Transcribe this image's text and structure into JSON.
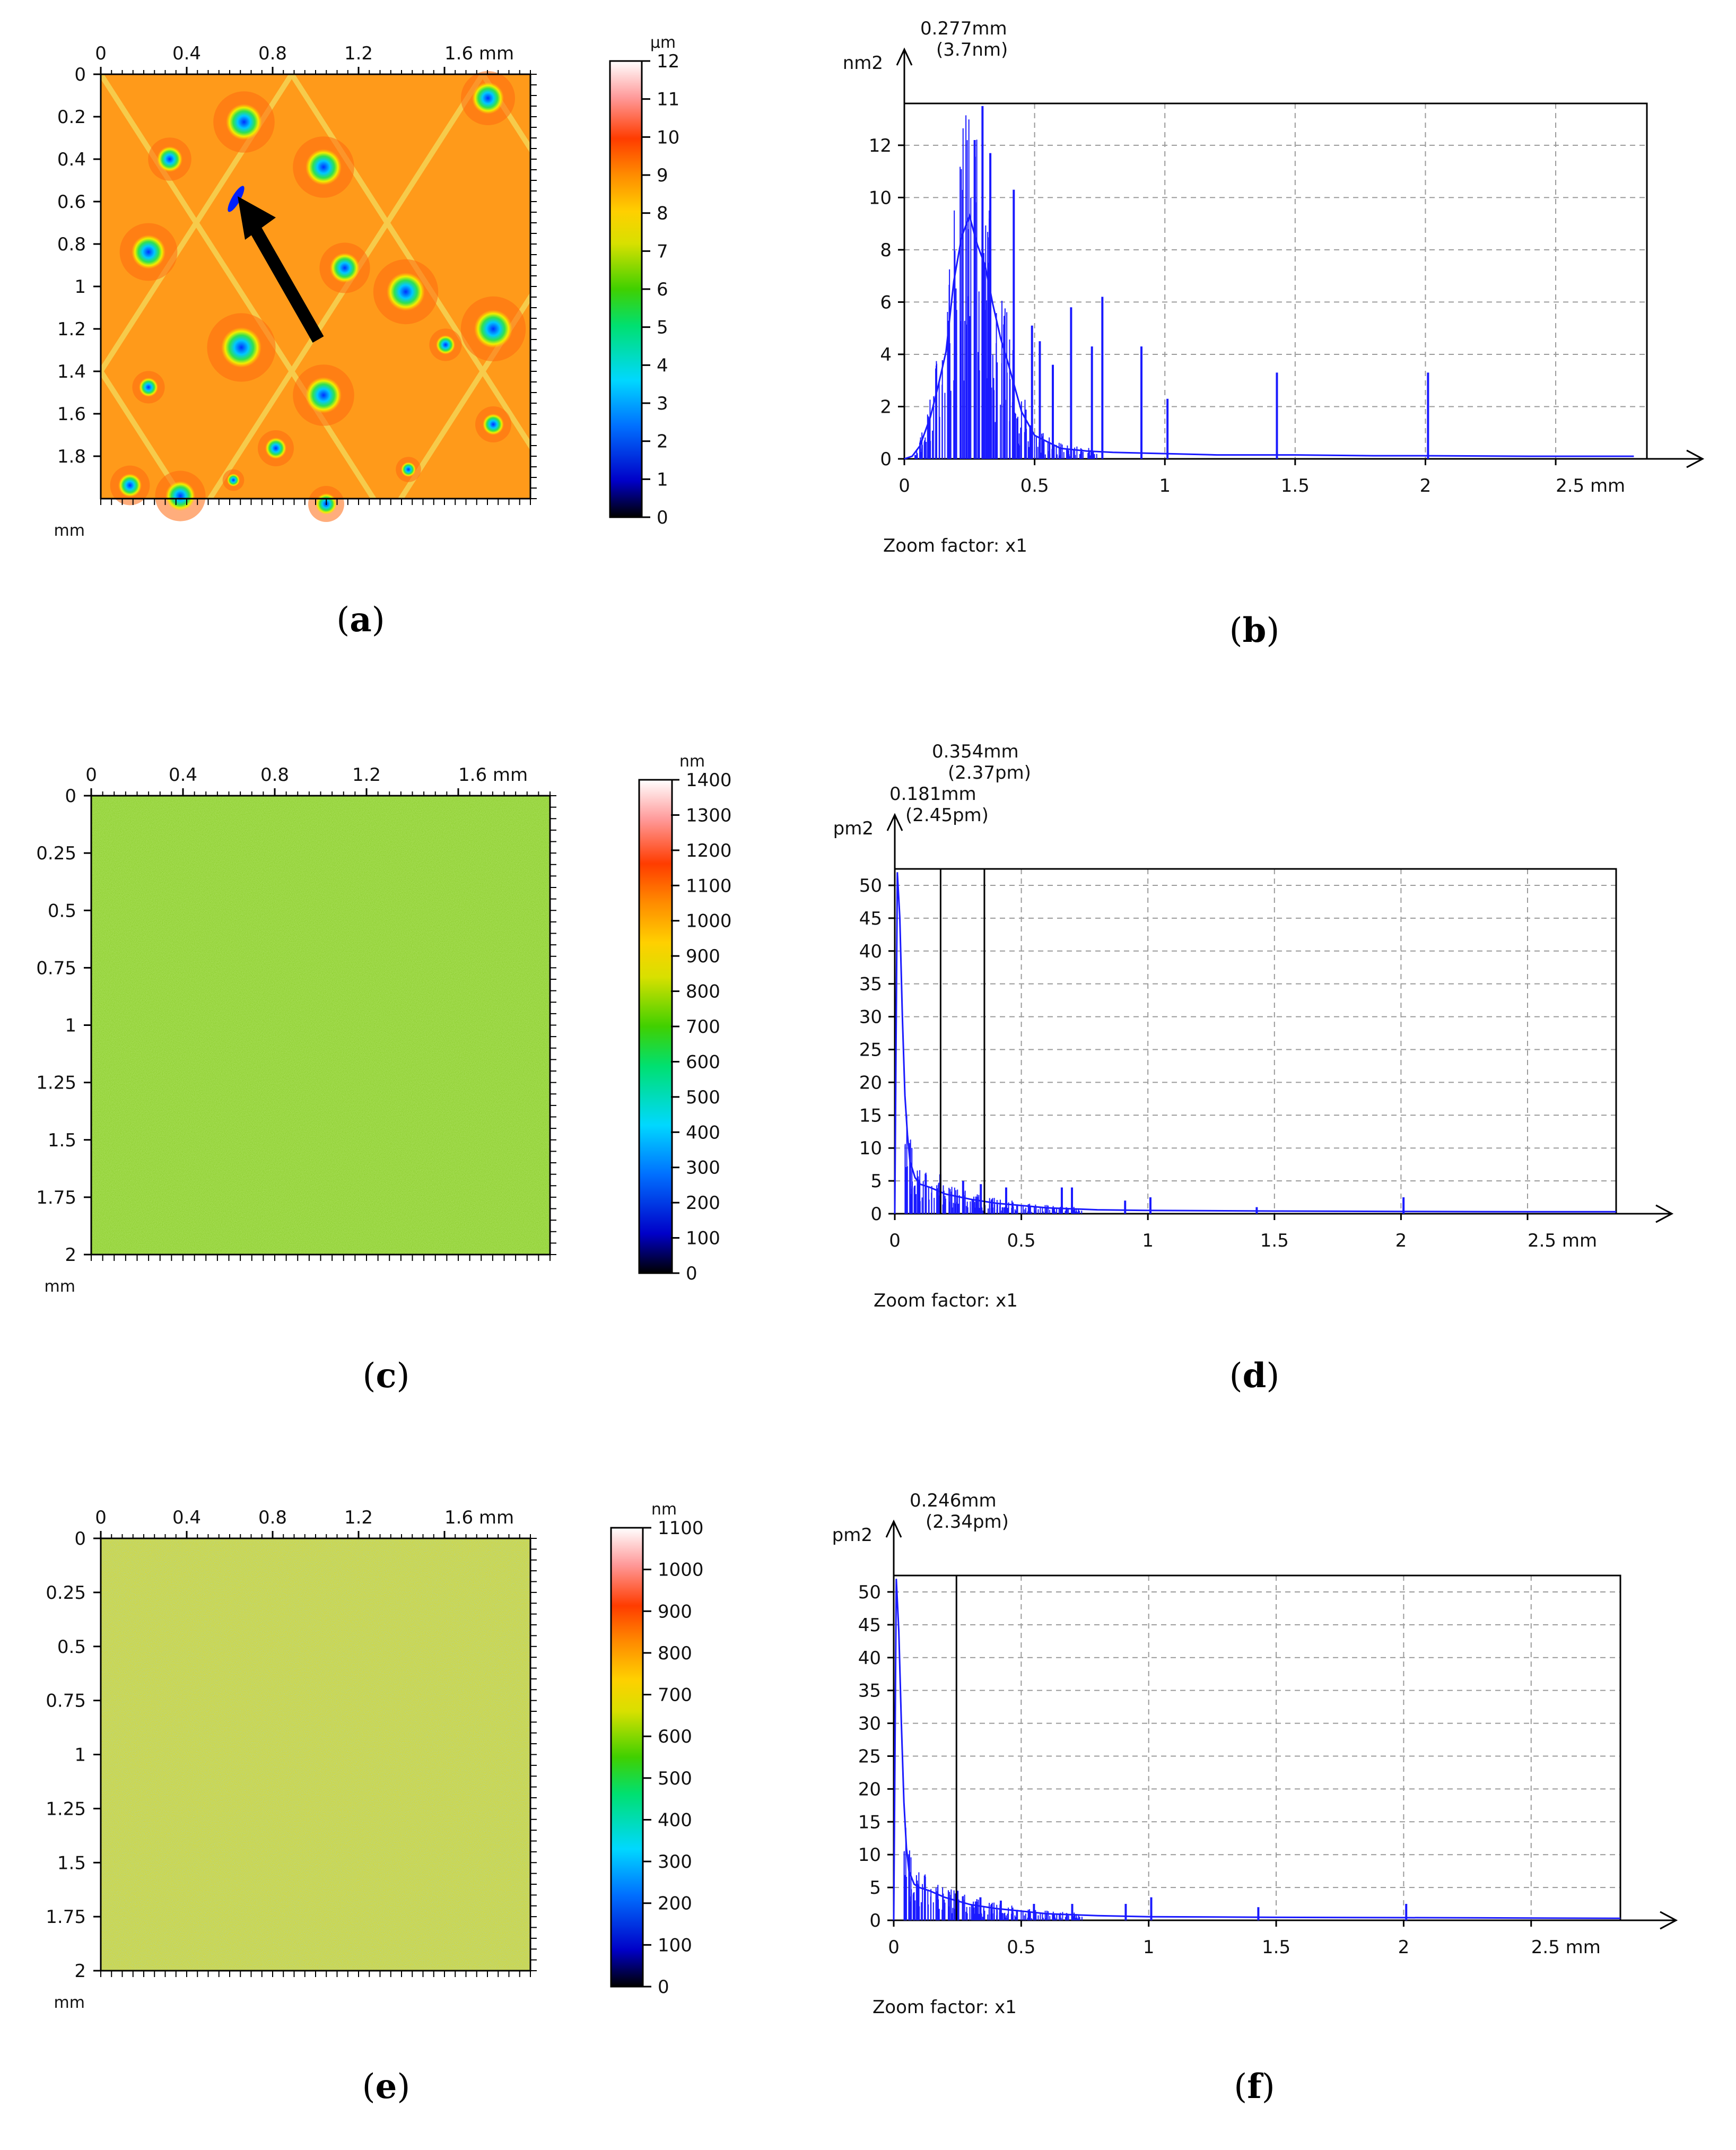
{
  "colors": {
    "spectrum_line": "#1a1aff",
    "axis": "#000000",
    "grid": "#9a9a9a",
    "arrow": "#000000"
  },
  "chart_data": [
    {
      "panel": "a",
      "type": "heatmap",
      "caption": "a",
      "x_ticks": [
        "0",
        "0.4",
        "0.8",
        "1.2",
        "1.6 mm"
      ],
      "y_ticks": [
        "0",
        "0.2",
        "0.4",
        "0.6",
        "0.8",
        "1",
        "1.2",
        "1.4",
        "1.6",
        "1.8"
      ],
      "y_unit": "mm",
      "xlim": [
        0,
        2
      ],
      "ylim": [
        0,
        2
      ],
      "colorbar": {
        "unit": "µm",
        "ticks": [
          "12",
          "11",
          "10",
          "9",
          "8",
          "7",
          "6",
          "5",
          "4",
          "3",
          "2",
          "1",
          "0"
        ],
        "range": [
          0,
          12
        ]
      },
      "texture": "pitted-diamond",
      "annotation": "arrow"
    },
    {
      "panel": "b",
      "type": "line",
      "caption": "b",
      "y_unit": "nm2",
      "x_ticks": [
        "0",
        "0.5",
        "1",
        "1.5",
        "2",
        "2.5 mm"
      ],
      "x_tick_values": [
        0,
        0.5,
        1,
        1.5,
        2,
        2.5
      ],
      "y_ticks": [
        "0",
        "2",
        "4",
        "6",
        "8",
        "10",
        "12"
      ],
      "y_tick_values": [
        0,
        2,
        4,
        6,
        8,
        10,
        12
      ],
      "xlim": [
        0,
        2.85
      ],
      "ylim": [
        0,
        13.6
      ],
      "zoom": "Zoom factor: x1",
      "markers": [
        {
          "x": 0.277,
          "label1": "0.277mm",
          "label2": "(3.7nm)",
          "show_line": false
        }
      ],
      "peaks": [
        [
          0.3,
          13.5
        ],
        [
          0.27,
          12.2
        ],
        [
          0.33,
          11.7
        ],
        [
          0.42,
          10.3
        ],
        [
          0.49,
          5.1
        ],
        [
          0.52,
          4.5
        ],
        [
          0.57,
          3.6
        ],
        [
          0.64,
          5.8
        ],
        [
          0.72,
          4.3
        ],
        [
          0.76,
          6.2
        ],
        [
          0.91,
          4.3
        ],
        [
          1.01,
          2.3
        ],
        [
          1.43,
          3.3
        ],
        [
          2.01,
          3.3
        ]
      ],
      "series": [
        {
          "name": "spectrum",
          "x": [
            0,
            0.03,
            0.06,
            0.1,
            0.13,
            0.16,
            0.19,
            0.22,
            0.25,
            0.28,
            0.31,
            0.34,
            0.37,
            0.4,
            0.45,
            0.5,
            0.6,
            0.7,
            0.8,
            1.0,
            1.2,
            1.5,
            1.8,
            2.0,
            2.4,
            2.8
          ],
          "values": [
            0,
            0.1,
            0.5,
            1.6,
            2.8,
            4.1,
            6.8,
            8.5,
            9.3,
            8.2,
            7.4,
            5.9,
            4.6,
            3.6,
            1.8,
            0.9,
            0.4,
            0.3,
            0.25,
            0.2,
            0.15,
            0.15,
            0.12,
            0.12,
            0.1,
            0.1
          ]
        }
      ]
    },
    {
      "panel": "c",
      "type": "heatmap",
      "caption": "c",
      "x_ticks": [
        "0",
        "0.4",
        "0.8",
        "1.2",
        "1.6 mm"
      ],
      "y_ticks": [
        "0",
        "0.25",
        "0.5",
        "0.75",
        "1",
        "1.25",
        "1.5",
        "1.75",
        "2"
      ],
      "y_unit": "mm",
      "xlim": [
        0,
        2
      ],
      "ylim": [
        0,
        2
      ],
      "colorbar": {
        "unit": "nm",
        "ticks": [
          "1400",
          "1300",
          "1200",
          "1100",
          "1000",
          "900",
          "800",
          "700",
          "600",
          "500",
          "400",
          "300",
          "200",
          "100",
          "0"
        ],
        "range": [
          0,
          1400
        ]
      },
      "texture": "noise-green"
    },
    {
      "panel": "d",
      "type": "line",
      "caption": "d",
      "y_unit": "pm2",
      "x_ticks": [
        "0",
        "0.5",
        "1",
        "1.5",
        "2",
        "2.5 mm"
      ],
      "x_tick_values": [
        0,
        0.5,
        1,
        1.5,
        2,
        2.5
      ],
      "y_ticks": [
        "0",
        "5",
        "10",
        "15",
        "20",
        "25",
        "30",
        "35",
        "40",
        "45",
        "50"
      ],
      "y_tick_values": [
        0,
        5,
        10,
        15,
        20,
        25,
        30,
        35,
        40,
        45,
        50
      ],
      "xlim": [
        0,
        2.85
      ],
      "ylim": [
        0,
        52.5
      ],
      "zoom": "Zoom factor: x1",
      "markers": [
        {
          "x": 0.354,
          "label1": "0.354mm",
          "label2": "(2.37pm)",
          "show_line": true
        },
        {
          "x": 0.181,
          "label1": "0.181mm",
          "label2": "(2.45pm)",
          "show_line": true
        }
      ],
      "peaks": [
        [
          0.18,
          6
        ],
        [
          0.27,
          5
        ],
        [
          0.34,
          4.5
        ],
        [
          0.44,
          4
        ],
        [
          0.66,
          4
        ],
        [
          0.7,
          4
        ],
        [
          0.91,
          2
        ],
        [
          1.01,
          2.5
        ],
        [
          1.43,
          1
        ],
        [
          2.01,
          2.5
        ]
      ],
      "series": [
        {
          "name": "spectrum",
          "x": [
            0,
            0.01,
            0.02,
            0.03,
            0.04,
            0.05,
            0.06,
            0.08,
            0.1,
            0.14,
            0.2,
            0.3,
            0.4,
            0.6,
            0.8,
            1.0,
            1.5,
            2.0,
            2.5,
            2.85
          ],
          "values": [
            0,
            52,
            45,
            30,
            18,
            12,
            8,
            5.5,
            4.5,
            4,
            3,
            2.2,
            1.6,
            0.9,
            0.6,
            0.5,
            0.4,
            0.35,
            0.3,
            0.3
          ]
        }
      ]
    },
    {
      "panel": "e",
      "type": "heatmap",
      "caption": "e",
      "x_ticks": [
        "0",
        "0.4",
        "0.8",
        "1.2",
        "1.6 mm"
      ],
      "y_ticks": [
        "0",
        "0.25",
        "0.5",
        "0.75",
        "1",
        "1.25",
        "1.5",
        "1.75",
        "2"
      ],
      "y_unit": "mm",
      "xlim": [
        0,
        2
      ],
      "ylim": [
        0,
        2
      ],
      "colorbar": {
        "unit": "nm",
        "ticks": [
          "1100",
          "1000",
          "900",
          "800",
          "700",
          "600",
          "500",
          "400",
          "300",
          "200",
          "100",
          "0"
        ],
        "range": [
          0,
          1100
        ]
      },
      "texture": "noise-yellow"
    },
    {
      "panel": "f",
      "type": "line",
      "caption": "f",
      "y_unit": "pm2",
      "x_ticks": [
        "0",
        "0.5",
        "1",
        "1.5",
        "2",
        "2.5 mm"
      ],
      "x_tick_values": [
        0,
        0.5,
        1,
        1.5,
        2,
        2.5
      ],
      "y_ticks": [
        "0",
        "5",
        "10",
        "15",
        "20",
        "25",
        "30",
        "35",
        "40",
        "45",
        "50"
      ],
      "y_tick_values": [
        0,
        5,
        10,
        15,
        20,
        25,
        30,
        35,
        40,
        45,
        50
      ],
      "xlim": [
        0,
        2.85
      ],
      "ylim": [
        0,
        52.5
      ],
      "zoom": "Zoom factor: x1",
      "markers": [
        {
          "x": 0.246,
          "label1": "0.246mm",
          "label2": "(2.34pm)",
          "show_line": true
        }
      ],
      "peaks": [
        [
          0.25,
          4.5
        ],
        [
          0.34,
          3.5
        ],
        [
          0.42,
          3
        ],
        [
          0.55,
          2.5
        ],
        [
          0.7,
          2.5
        ],
        [
          0.91,
          2.5
        ],
        [
          1.01,
          3.5
        ],
        [
          1.43,
          2
        ],
        [
          2.01,
          2.5
        ]
      ],
      "series": [
        {
          "name": "spectrum",
          "x": [
            0,
            0.01,
            0.02,
            0.03,
            0.04,
            0.05,
            0.06,
            0.08,
            0.1,
            0.14,
            0.2,
            0.3,
            0.4,
            0.6,
            0.8,
            1.0,
            1.5,
            2.0,
            2.5,
            2.85
          ],
          "values": [
            0,
            52,
            44,
            30,
            18,
            11,
            7.5,
            5.5,
            5,
            4.5,
            3.5,
            2.4,
            1.8,
            1.0,
            0.7,
            0.55,
            0.45,
            0.4,
            0.35,
            0.3
          ]
        }
      ]
    }
  ]
}
